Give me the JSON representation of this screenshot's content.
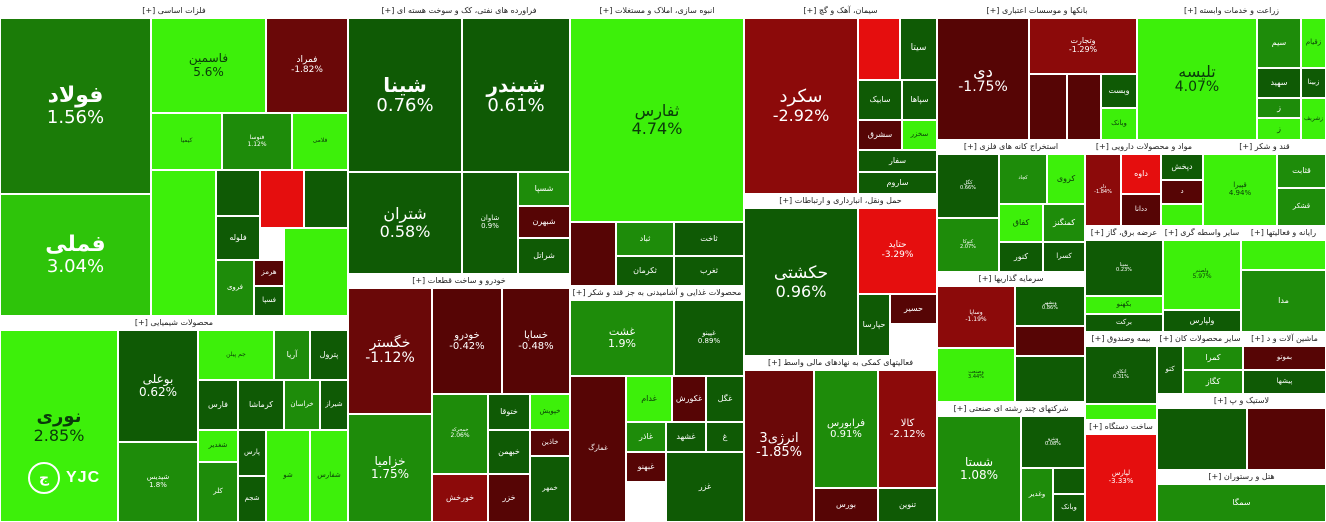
{
  "colors": {
    "pos_strong": "#3df00a",
    "pos_mid": "#1e8c0a",
    "pos_dark": "#0f5a05",
    "neg_strong": "#e50e0e",
    "neg_mid": "#8c0a0a",
    "neg_dark": "#560505"
  },
  "logo": {
    "mark": "ج",
    "text": "YJC"
  },
  "sectors": [
    {
      "id": "s0",
      "header": "فلزات اساسی [+]",
      "tiles": [
        {
          "sym": "فولاد",
          "pct": "1.56%",
          "c": "#1b7c08"
        },
        {
          "sym": "فملی",
          "pct": "3.04%",
          "c": "#2ec40a"
        },
        {
          "sym": "فاسمین",
          "pct": "5.6%",
          "c": "#3df00a",
          "light": true
        },
        {
          "sym": "فمراد",
          "pct": "-1.82%",
          "c": "#6a0808"
        },
        {
          "sym": "کیمیا",
          "pct": "",
          "c": "#3df00a",
          "light": true
        },
        {
          "sym": "فنوسا",
          "pct": "1.12%",
          "c": "#1e8c0a"
        },
        {
          "sym": "فلامی",
          "pct": "",
          "c": "#3df00a",
          "light": true
        },
        {
          "sym": "",
          "pct": "",
          "c": "#0f5a05"
        },
        {
          "sym": "",
          "pct": "",
          "c": "#e50e0e"
        },
        {
          "sym": "",
          "pct": "",
          "c": "#0f5a05"
        },
        {
          "sym": "",
          "pct": "",
          "c": "#3df00a",
          "light": true
        },
        {
          "sym": "فلوله",
          "pct": "",
          "c": "#0f5a05"
        },
        {
          "sym": "هرمز",
          "pct": "",
          "c": "#560505"
        },
        {
          "sym": "فروی",
          "pct": "",
          "c": "#1e8c0a"
        },
        {
          "sym": "فسپا",
          "pct": "",
          "c": "#0f5a05"
        },
        {
          "sym": "",
          "pct": "",
          "c": "#3df00a",
          "light": true
        }
      ]
    },
    {
      "id": "s1",
      "header": "فراورده های نفتی، کک و سوخت هسته ای [+]",
      "tiles": [
        {
          "sym": "شینا",
          "pct": "0.76%",
          "c": "#0f5a05"
        },
        {
          "sym": "شبندر",
          "pct": "0.61%",
          "c": "#0f5a05"
        },
        {
          "sym": "شتران",
          "pct": "0.58%",
          "c": "#0f5a05"
        },
        {
          "sym": "شاوان",
          "pct": "0.9%",
          "c": "#0f5a05"
        },
        {
          "sym": "شسپا",
          "pct": "",
          "c": "#1e8c0a"
        },
        {
          "sym": "شبهرن",
          "pct": "",
          "c": "#560505"
        },
        {
          "sym": "شراتل",
          "pct": "",
          "c": "#0f5a05"
        }
      ]
    },
    {
      "id": "s2",
      "header": "انبوه سازی، املاک و مستغلات [+]",
      "tiles": [
        {
          "sym": "ثفارس",
          "pct": "4.74%",
          "c": "#3df00a",
          "light": true
        },
        {
          "sym": "ثباد",
          "pct": "",
          "c": "#1e8c0a"
        },
        {
          "sym": "ثاخت",
          "pct": "",
          "c": "#0f5a05"
        },
        {
          "sym": "ثکرمان",
          "pct": "",
          "c": "#0f5a05"
        },
        {
          "sym": "ثغرب",
          "pct": "",
          "c": "#0f5a05"
        },
        {
          "sym": "",
          "pct": "",
          "c": "#560505"
        }
      ]
    },
    {
      "id": "s3",
      "header": "سیمان، آهک و گچ [+]",
      "tiles": [
        {
          "sym": "سکرد",
          "pct": "-2.92%",
          "c": "#8c0a0a"
        },
        {
          "sym": "",
          "pct": "",
          "c": "#e50e0e"
        },
        {
          "sym": "سیتا",
          "pct": "",
          "c": "#0f5a05"
        },
        {
          "sym": "سابیک",
          "pct": "",
          "c": "#0f5a05"
        },
        {
          "sym": "سپاها",
          "pct": "",
          "c": "#0f5a05"
        },
        {
          "sym": "سشرق",
          "pct": "",
          "c": "#560505"
        },
        {
          "sym": "سخزر",
          "pct": "",
          "c": "#3df00a",
          "light": true
        },
        {
          "sym": "سفار",
          "pct": "",
          "c": "#0f5a05"
        },
        {
          "sym": "ساروم",
          "pct": "",
          "c": "#0f5a05"
        }
      ]
    },
    {
      "id": "s4",
      "header": "بانکها و موسسات اعتباری [+]",
      "tiles": [
        {
          "sym": "دی",
          "pct": "-1.75%",
          "c": "#560505"
        },
        {
          "sym": "وتجارت",
          "pct": "-1.29%",
          "c": "#8c0a0a"
        },
        {
          "sym": "وبست",
          "pct": "",
          "c": "#0f5a05"
        },
        {
          "sym": "وبانک",
          "pct": "",
          "c": "#3df00a",
          "light": true
        },
        {
          "sym": "",
          "pct": "",
          "c": "#560505"
        },
        {
          "sym": "",
          "pct": "",
          "c": "#560505"
        }
      ]
    },
    {
      "id": "s5",
      "header": "زراعت و خدمات وابسته [+]",
      "tiles": [
        {
          "sym": "تلیسه",
          "pct": "4.07%",
          "c": "#3df00a",
          "light": true
        },
        {
          "sym": "سیم",
          "pct": "",
          "c": "#1e8c0a"
        },
        {
          "sym": "زقیام",
          "pct": "",
          "c": "#3df00a",
          "light": true
        },
        {
          "sym": "سهید",
          "pct": "",
          "c": "#0f5a05"
        },
        {
          "sym": "زبینا",
          "pct": "",
          "c": "#0f5a05"
        },
        {
          "sym": "زشریف",
          "pct": "",
          "c": "#3df00a",
          "light": true
        },
        {
          "sym": "ز",
          "pct": "",
          "c": "#1e8c0a"
        },
        {
          "sym": "ز",
          "pct": "",
          "c": "#3df00a",
          "light": true
        }
      ]
    },
    {
      "id": "s6",
      "header": "استخراج کانه های فلزی [+]",
      "tiles": [
        {
          "sym": "کگل",
          "pct": "0.66%",
          "c": "#0f5a05"
        },
        {
          "sym": "کچاد",
          "pct": "",
          "c": "#1e8c0a"
        },
        {
          "sym": "کروی",
          "pct": "",
          "c": "#3df00a",
          "light": true
        },
        {
          "sym": "کسرا",
          "pct": "",
          "c": "#0f5a05"
        },
        {
          "sym": "کفاق",
          "pct": "",
          "c": "#3df00a",
          "light": true
        },
        {
          "sym": "کمنگنز",
          "pct": "",
          "c": "#1e8c0a"
        },
        {
          "sym": "کنور",
          "pct": "",
          "c": "#0f5a05"
        },
        {
          "sym": "کتوکا",
          "pct": "2.07%",
          "c": "#1e8c0a"
        }
      ]
    },
    {
      "id": "s7",
      "header": "مواد و محصولات دارویی [+]",
      "tiles": [
        {
          "sym": "دلر",
          "pct": "-1.84%",
          "c": "#8c0a0a"
        },
        {
          "sym": "داوه",
          "pct": "",
          "c": "#e50e0e"
        },
        {
          "sym": "دپخش",
          "pct": "",
          "c": "#0f5a05"
        },
        {
          "sym": "ددانا",
          "pct": "",
          "c": "#560505"
        },
        {
          "sym": "د",
          "pct": "",
          "c": "#560505"
        },
        {
          "sym": "",
          "pct": "",
          "c": "#3df00a",
          "light": true
        }
      ]
    },
    {
      "id": "s8",
      "header": "قند و شکر [+]",
      "tiles": [
        {
          "sym": "قپیرا",
          "pct": "4.94%",
          "c": "#3df00a",
          "light": true
        },
        {
          "sym": "قثابت",
          "pct": "",
          "c": "#1e8c0a"
        },
        {
          "sym": "قشکر",
          "pct": "",
          "c": "#1e8c0a"
        },
        {
          "sym": "",
          "pct": "",
          "c": "#3df00a",
          "light": true
        }
      ]
    },
    {
      "id": "s9",
      "header": "حمل ونقل، انبارداری و ارتباطات [+]",
      "tiles": [
        {
          "sym": "حکشتی",
          "pct": "0.96%",
          "c": "#0f5a05"
        },
        {
          "sym": "حتاید",
          "pct": "-3.29%",
          "c": "#e50e0e"
        },
        {
          "sym": "حسیر",
          "pct": "",
          "c": "#560505"
        },
        {
          "sym": "حپارسا",
          "pct": "",
          "c": "#0f5a05"
        }
      ]
    },
    {
      "id": "s10",
      "header": "خودرو و ساخت قطعات [+]",
      "tiles": [
        {
          "sym": "خگستر",
          "pct": "-1.12%",
          "c": "#6a0808"
        },
        {
          "sym": "خودرو",
          "pct": "-0.42%",
          "c": "#560505"
        },
        {
          "sym": "خساپا",
          "pct": "-0.48%",
          "c": "#560505"
        },
        {
          "sym": "خزامیا",
          "pct": "1.75%",
          "c": "#1e8c0a"
        },
        {
          "sym": "خمحرکه",
          "pct": "2.06%",
          "c": "#1e8c0a"
        },
        {
          "sym": "ختوقا",
          "pct": "",
          "c": "#0f5a05"
        },
        {
          "sym": "خبهمن",
          "pct": "",
          "c": "#0f5a05"
        },
        {
          "sym": "خاذین",
          "pct": "",
          "c": "#560505"
        },
        {
          "sym": "خپویش",
          "pct": "",
          "c": "#3df00a",
          "light": true
        },
        {
          "sym": "خزر",
          "pct": "",
          "c": "#560505"
        },
        {
          "sym": "خمهر",
          "pct": "",
          "c": "#0f5a05"
        },
        {
          "sym": "خورخش",
          "pct": "",
          "c": "#8c0a0a"
        }
      ]
    },
    {
      "id": "s11",
      "header": "محصولات غذایی و آشامیدنی به جز قند و شکر [+]",
      "tiles": [
        {
          "sym": "غشت",
          "pct": "1.9%",
          "c": "#1e8c0a"
        },
        {
          "sym": "غپینو",
          "pct": "0.89%",
          "c": "#0f5a05"
        },
        {
          "sym": "غدام",
          "pct": "",
          "c": "#3df00a",
          "light": true
        },
        {
          "sym": "غکورش",
          "pct": "",
          "c": "#560505"
        },
        {
          "sym": "غگل",
          "pct": "",
          "c": "#0f5a05"
        },
        {
          "sym": "غاذر",
          "pct": "",
          "c": "#1e8c0a"
        },
        {
          "sym": "غشهد",
          "pct": "",
          "c": "#0f5a05"
        },
        {
          "sym": "غ",
          "pct": "",
          "c": "#0f5a05"
        },
        {
          "sym": "غبهنو",
          "pct": "",
          "c": "#560505"
        },
        {
          "sym": "غزر",
          "pct": "",
          "c": "#0f5a05"
        },
        {
          "sym": "غمارگ",
          "pct": "",
          "c": "#560505"
        }
      ]
    },
    {
      "id": "s12",
      "header": "فعالیتهای کمکی به نهادهای مالی واسط [+]",
      "tiles": [
        {
          "sym": "انرژی3",
          "pct": "-1.85%",
          "c": "#6a0808"
        },
        {
          "sym": "فرابورس",
          "pct": "0.91%",
          "c": "#1e8c0a"
        },
        {
          "sym": "کالا",
          "pct": "-2.12%",
          "c": "#8c0a0a"
        },
        {
          "sym": "بورس",
          "pct": "",
          "c": "#560505"
        },
        {
          "sym": "تنوین",
          "pct": "",
          "c": "#0f5a05"
        }
      ]
    },
    {
      "id": "s13",
      "header": "سرمایه گذاریها [+]",
      "tiles": [
        {
          "sym": "وساپا",
          "pct": "-1.19%",
          "c": "#8c0a0a"
        },
        {
          "sym": "وصنعت",
          "pct": "3.44%",
          "c": "#3df00a",
          "light": true
        },
        {
          "sym": "وبشهر",
          "pct": "0.86%",
          "c": "#0f5a05"
        },
        {
          "sym": "",
          "pct": "",
          "c": "#560505"
        },
        {
          "sym": "",
          "pct": "",
          "c": "#0f5a05"
        }
      ]
    },
    {
      "id": "s14",
      "header": "شرکتهای چند رشته ای صنعتی [+]",
      "tiles": [
        {
          "sym": "شستا",
          "pct": "1.08%",
          "c": "#1e8c0a"
        },
        {
          "sym": "وپترو",
          "pct": "0.08%",
          "c": "#0f5a05"
        },
        {
          "sym": "ومعادن",
          "pct": "",
          "c": "#0f5a05"
        },
        {
          "sym": "وبانک",
          "pct": "",
          "c": "#0f5a05"
        },
        {
          "sym": "وغدیر",
          "pct": "",
          "c": "#1e8c0a"
        }
      ]
    },
    {
      "id": "s15",
      "header": "محصولات شیمیایی [+]",
      "tiles": [
        {
          "sym": "نوری",
          "pct": "2.85%",
          "c": "#3df00a",
          "light": true
        },
        {
          "sym": "بوعلی",
          "pct": "0.62%",
          "c": "#0f5a05"
        },
        {
          "sym": "شپدیس",
          "pct": "1.8%",
          "c": "#1e8c0a"
        },
        {
          "sym": "پترول",
          "pct": "",
          "c": "#0f5a05"
        },
        {
          "sym": "آریا",
          "pct": "",
          "c": "#1e8c0a"
        },
        {
          "sym": "جم پیلن",
          "pct": "",
          "c": "#3df00a",
          "light": true
        },
        {
          "sym": "فارس",
          "pct": "",
          "c": "#0f5a05"
        },
        {
          "sym": "کرماشا",
          "pct": "",
          "c": "#0f5a05"
        },
        {
          "sym": "خراسان",
          "pct": "",
          "c": "#1e8c0a"
        },
        {
          "sym": "شفارس",
          "pct": "",
          "c": "#3df00a",
          "light": true
        },
        {
          "sym": "شغدیر",
          "pct": "",
          "c": "#3df00a",
          "light": true
        },
        {
          "sym": "پارس",
          "pct": "",
          "c": "#0f5a05"
        },
        {
          "sym": "کلر",
          "pct": "",
          "c": "#1e8c0a"
        },
        {
          "sym": "شجم",
          "pct": "",
          "c": "#0f5a05"
        },
        {
          "sym": "شو",
          "pct": "",
          "c": "#3df00a",
          "light": true
        },
        {
          "sym": "شیراز",
          "pct": "",
          "c": "#0f5a05"
        }
      ]
    },
    {
      "id": "s16",
      "header": "عرضه برق، گاز [+]",
      "tiles": [
        {
          "sym": "بمپنا",
          "pct": "0.23%",
          "c": "#0f5a05"
        },
        {
          "sym": "بکهنو",
          "pct": "",
          "c": "#3df00a",
          "light": true
        },
        {
          "sym": "برکت",
          "pct": "",
          "c": "#0f5a05"
        }
      ]
    },
    {
      "id": "s17",
      "header": "سایر واسطه گری [+]",
      "tiles": [
        {
          "sym": "ولصنم",
          "pct": "5.97%",
          "c": "#3df00a",
          "light": true
        },
        {
          "sym": "ولپارس",
          "pct": "",
          "c": "#0f5a05"
        }
      ]
    },
    {
      "id": "s18",
      "header": "رایانه و فعالیتها [+]",
      "tiles": [
        {
          "sym": "مدا",
          "pct": "",
          "c": "#1e8c0a"
        },
        {
          "sym": "",
          "pct": "",
          "c": "#3df00a",
          "light": true
        }
      ]
    },
    {
      "id": "s19",
      "header": "بیمه وصندوق [+]",
      "tiles": [
        {
          "sym": "اتکای",
          "pct": "0.31%",
          "c": "#0f5a05"
        },
        {
          "sym": "",
          "pct": "",
          "c": "#3df00a",
          "light": true
        }
      ]
    },
    {
      "id": "s20",
      "header": "سایر محصولات کان [+]",
      "tiles": [
        {
          "sym": "کمرا",
          "pct": "",
          "c": "#1e8c0a"
        },
        {
          "sym": "کگاز",
          "pct": "",
          "c": "#1e8c0a"
        },
        {
          "sym": "کتو",
          "pct": "",
          "c": "#0f5a05"
        }
      ]
    },
    {
      "id": "s21",
      "header": "ماشین آلات و د [+]",
      "tiles": [
        {
          "sym": "بموتو",
          "pct": "",
          "c": "#560505"
        },
        {
          "sym": "پیشها",
          "pct": "",
          "c": "#0f5a05"
        }
      ]
    },
    {
      "id": "s22",
      "header": "ساخت دستگاه [+]",
      "tiles": [
        {
          "sym": "لپارس",
          "pct": "-3.33%",
          "c": "#e50e0e"
        }
      ]
    },
    {
      "id": "s23",
      "header": "لاستیک و پ [+]",
      "tiles": [
        {
          "sym": "",
          "pct": "",
          "c": "#0f5a05"
        },
        {
          "sym": "",
          "pct": "",
          "c": "#560505"
        }
      ]
    },
    {
      "id": "s24",
      "header": "هتل و رستوران [+]",
      "tiles": [
        {
          "sym": "سمگا",
          "pct": "",
          "c": "#1e8c0a"
        }
      ]
    }
  ]
}
